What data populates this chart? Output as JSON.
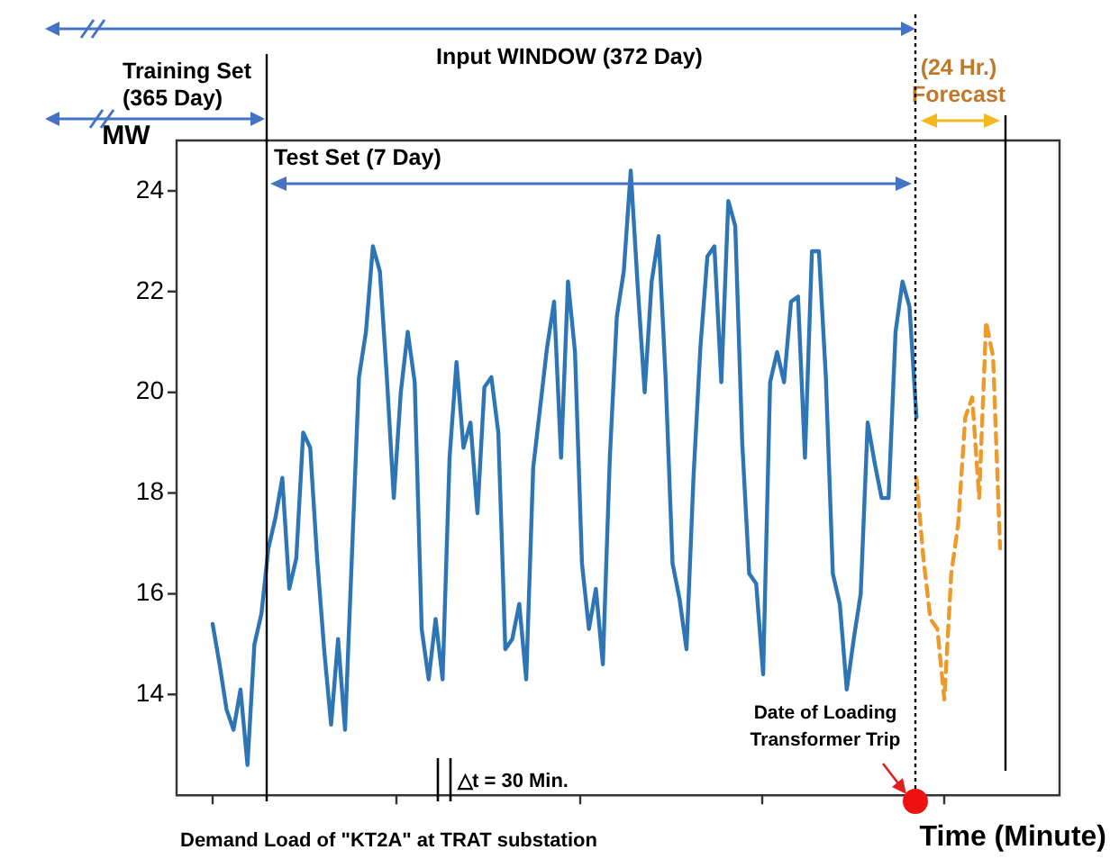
{
  "chart_data": {
    "type": "line",
    "xlabel": "Time (Minute)",
    "ylabel": "MW",
    "categories": [
      null,
      null,
      null,
      null,
      null,
      null,
      null,
      null,
      null,
      null,
      null,
      null,
      null,
      null,
      null,
      null,
      null,
      null,
      null,
      null,
      null,
      null,
      null,
      null,
      null,
      null,
      null,
      null,
      null,
      null,
      null,
      null,
      null,
      null,
      null,
      null,
      null,
      null,
      null,
      null,
      null,
      null,
      null,
      null,
      null,
      null,
      null,
      null,
      null,
      null,
      null,
      null,
      null,
      null,
      null,
      null,
      null,
      null,
      null,
      null,
      null,
      null,
      null,
      null,
      null,
      null,
      null,
      null,
      null,
      null,
      null,
      null,
      null,
      null,
      null,
      null,
      null,
      null,
      null,
      null,
      null,
      null,
      null,
      null,
      null,
      null,
      null,
      null,
      null,
      null,
      null,
      null,
      null,
      null,
      null,
      null,
      null,
      null,
      null,
      null,
      null,
      null,
      null,
      null,
      null,
      null,
      null,
      null,
      null,
      null,
      null,
      null,
      null,
      null
    ],
    "ylim": [
      12,
      25
    ],
    "yticks": [
      14,
      16,
      18,
      20,
      22,
      24
    ],
    "grid": false,
    "legend": false,
    "marker": "none",
    "series": [
      {
        "color": "#2e75b6",
        "line_style": "solid",
        "values": [
          15.4,
          14.6,
          13.7,
          13.3,
          14.1,
          12.6,
          15.0,
          15.6,
          16.9,
          17.5,
          18.3,
          16.1,
          16.7,
          19.2,
          18.9,
          16.7,
          14.9,
          13.4,
          15.1,
          13.3,
          16.8,
          20.3,
          21.2,
          22.9,
          22.4,
          20.3,
          17.9,
          20.0,
          21.2,
          20.2,
          15.3,
          14.3,
          15.5,
          14.3,
          18.7,
          20.6,
          18.9,
          19.4,
          17.6,
          20.1,
          20.3,
          19.2,
          14.9,
          15.1,
          15.8,
          14.3,
          18.5,
          19.7,
          20.9,
          21.8,
          18.7,
          22.2,
          20.8,
          16.6,
          15.3,
          16.1,
          14.6,
          18.7,
          21.5,
          22.4,
          24.4,
          22.1,
          20.0,
          22.2,
          23.1,
          20.3,
          16.6,
          15.9,
          14.9,
          18.3,
          20.9,
          22.7,
          22.9,
          20.2,
          23.8,
          23.3,
          19.0,
          16.4,
          16.2,
          14.4,
          20.2,
          20.8,
          20.2,
          21.8,
          21.9,
          18.7,
          22.8,
          22.8,
          20.3,
          16.4,
          15.8,
          14.1,
          15.1,
          16.0,
          19.4,
          18.6,
          17.9,
          17.9,
          21.2,
          22.2,
          21.7,
          19.5,
          null,
          null,
          null,
          null,
          null,
          null,
          null,
          null,
          null,
          null,
          null,
          null
        ]
      },
      {
        "color": "#ed9a2c",
        "line_style": "dashed",
        "values": [
          null,
          null,
          null,
          null,
          null,
          null,
          null,
          null,
          null,
          null,
          null,
          null,
          null,
          null,
          null,
          null,
          null,
          null,
          null,
          null,
          null,
          null,
          null,
          null,
          null,
          null,
          null,
          null,
          null,
          null,
          null,
          null,
          null,
          null,
          null,
          null,
          null,
          null,
          null,
          null,
          null,
          null,
          null,
          null,
          null,
          null,
          null,
          null,
          null,
          null,
          null,
          null,
          null,
          null,
          null,
          null,
          null,
          null,
          null,
          null,
          null,
          null,
          null,
          null,
          null,
          null,
          null,
          null,
          null,
          null,
          null,
          null,
          null,
          null,
          null,
          null,
          null,
          null,
          null,
          null,
          null,
          null,
          null,
          null,
          null,
          null,
          null,
          null,
          null,
          null,
          null,
          null,
          null,
          null,
          null,
          null,
          null,
          null,
          null,
          null,
          null,
          18.3,
          16.7,
          15.5,
          15.3,
          13.9,
          16.4,
          17.4,
          19.5,
          19.9,
          17.9,
          21.4,
          20.7,
          16.9
        ]
      }
    ],
    "annotations": [
      "Input WINDOW (372 Day)",
      "Training Set (365 Day)",
      "Test Set (7 Day)",
      "(24 Hr.) Forecast",
      "Date of Loading Transformer Trip",
      "△t = 30 Min.",
      "Demand Load of \"KT2A\" at TRAT substation"
    ]
  }
}
